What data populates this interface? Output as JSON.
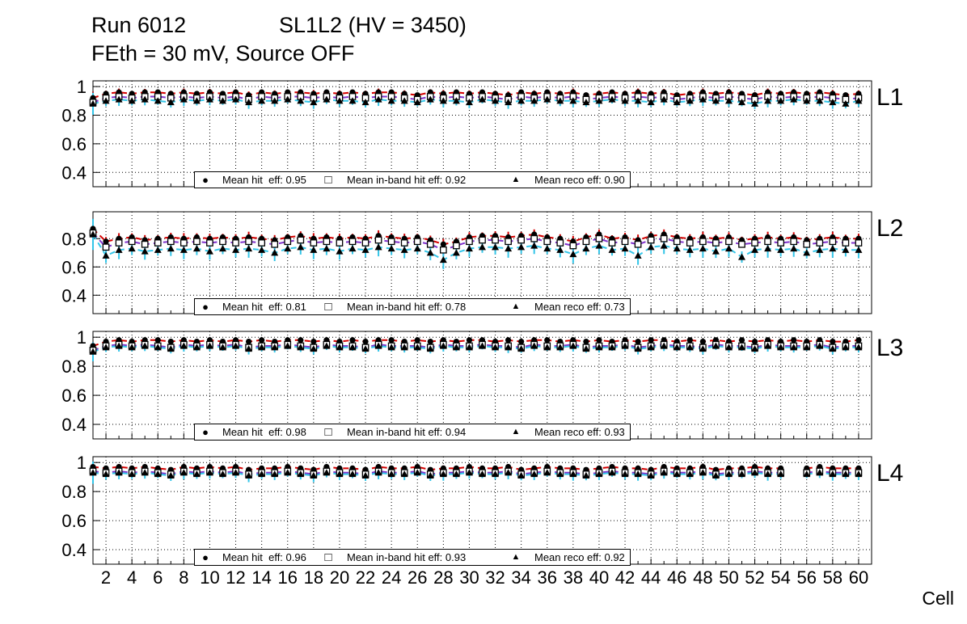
{
  "header": {
    "run_label": "Run 6012",
    "chamber_label": "SL1L2 (HV = 3450)",
    "subtitle": "FEth = 30 mV, Source OFF"
  },
  "xaxis": {
    "label": "Cell",
    "min": 1,
    "max": 61,
    "ticks": [
      2,
      4,
      6,
      8,
      10,
      12,
      14,
      16,
      18,
      20,
      22,
      24,
      26,
      28,
      30,
      32,
      34,
      36,
      38,
      40,
      42,
      44,
      46,
      48,
      50,
      52,
      54,
      56,
      58,
      60
    ]
  },
  "styles": {
    "hit_error_color": "#d40000",
    "inband_error_color": "#8033cc",
    "reco_error_color": "#33c5e8",
    "marker_color": "#000000",
    "background": "#ffffff"
  },
  "chart_data": [
    {
      "type": "scatter",
      "title": "L1",
      "xlabel": "Cell",
      "ylim": [
        0.3,
        1.04
      ],
      "yticks": [
        0.4,
        0.6,
        0.8,
        1
      ],
      "grid": "dotted",
      "legend_position": "bottom-center",
      "series": [
        {
          "name": "Mean hit  eff: 0.95",
          "mean": 0.95,
          "marker": "filled-circle",
          "color": "#d40000",
          "err": 0.02,
          "values": [
            0.92,
            0.95,
            0.96,
            0.95,
            0.96,
            0.96,
            0.95,
            0.96,
            0.95,
            0.96,
            0.95,
            0.96,
            0.94,
            0.96,
            0.95,
            0.96,
            0.96,
            0.95,
            0.96,
            0.95,
            0.96,
            0.95,
            0.96,
            0.96,
            0.95,
            0.94,
            0.96,
            0.95,
            0.96,
            0.95,
            0.96,
            0.95,
            0.94,
            0.96,
            0.95,
            0.96,
            0.95,
            0.96,
            0.94,
            0.95,
            0.96,
            0.95,
            0.96,
            0.95,
            0.96,
            0.94,
            0.95,
            0.96,
            0.95,
            0.96,
            0.95,
            0.94,
            0.96,
            0.95,
            0.96,
            0.95,
            0.96,
            0.95,
            0.94,
            0.95
          ]
        },
        {
          "name": "Mean in-band hit eff: 0.92",
          "mean": 0.92,
          "marker": "open-square",
          "color": "#8033cc",
          "err": 0.018,
          "values": [
            0.89,
            0.92,
            0.93,
            0.92,
            0.93,
            0.93,
            0.92,
            0.93,
            0.92,
            0.93,
            0.92,
            0.93,
            0.91,
            0.93,
            0.92,
            0.93,
            0.93,
            0.92,
            0.93,
            0.92,
            0.93,
            0.92,
            0.93,
            0.93,
            0.92,
            0.91,
            0.93,
            0.92,
            0.93,
            0.92,
            0.93,
            0.92,
            0.91,
            0.93,
            0.92,
            0.93,
            0.92,
            0.93,
            0.91,
            0.92,
            0.93,
            0.92,
            0.93,
            0.92,
            0.93,
            0.91,
            0.92,
            0.93,
            0.92,
            0.93,
            0.92,
            0.91,
            0.93,
            0.92,
            0.93,
            0.92,
            0.93,
            0.92,
            0.91,
            0.92
          ]
        },
        {
          "name": "Mean reco eff: 0.90",
          "mean": 0.9,
          "marker": "filled-triangle",
          "color": "#33c5e8",
          "err": 0.035,
          "values": [
            0.88,
            0.9,
            0.91,
            0.9,
            0.91,
            0.9,
            0.89,
            0.91,
            0.9,
            0.91,
            0.9,
            0.91,
            0.89,
            0.9,
            0.9,
            0.91,
            0.9,
            0.89,
            0.91,
            0.9,
            0.9,
            0.89,
            0.91,
            0.9,
            0.9,
            0.89,
            0.91,
            0.9,
            0.9,
            0.89,
            0.91,
            0.9,
            0.89,
            0.9,
            0.9,
            0.91,
            0.9,
            0.9,
            0.89,
            0.9,
            0.91,
            0.9,
            0.9,
            0.89,
            0.91,
            0.89,
            0.9,
            0.91,
            0.9,
            0.9,
            0.89,
            0.88,
            0.9,
            0.9,
            0.91,
            0.9,
            0.9,
            0.89,
            0.88,
            0.9
          ]
        }
      ]
    },
    {
      "type": "scatter",
      "title": "L2",
      "xlabel": "Cell",
      "ylim": [
        0.27,
        0.99
      ],
      "yticks": [
        0.4,
        0.6,
        0.8
      ],
      "grid": "dotted",
      "legend_position": "bottom-center",
      "series": [
        {
          "name": "Mean hit  eff: 0.81",
          "mean": 0.81,
          "marker": "filled-circle",
          "color": "#d40000",
          "err": 0.03,
          "values": [
            0.87,
            0.78,
            0.8,
            0.81,
            0.79,
            0.8,
            0.81,
            0.8,
            0.81,
            0.8,
            0.81,
            0.8,
            0.81,
            0.8,
            0.79,
            0.81,
            0.82,
            0.8,
            0.81,
            0.8,
            0.81,
            0.8,
            0.82,
            0.81,
            0.8,
            0.81,
            0.79,
            0.76,
            0.78,
            0.81,
            0.82,
            0.82,
            0.81,
            0.82,
            0.83,
            0.81,
            0.8,
            0.78,
            0.81,
            0.83,
            0.8,
            0.81,
            0.79,
            0.82,
            0.83,
            0.81,
            0.8,
            0.81,
            0.8,
            0.81,
            0.79,
            0.8,
            0.81,
            0.8,
            0.81,
            0.79,
            0.8,
            0.81,
            0.8,
            0.8
          ]
        },
        {
          "name": "Mean in-band hit eff: 0.78",
          "mean": 0.78,
          "marker": "open-square",
          "color": "#8033cc",
          "err": 0.028,
          "values": [
            0.84,
            0.74,
            0.77,
            0.78,
            0.76,
            0.77,
            0.78,
            0.77,
            0.78,
            0.77,
            0.78,
            0.77,
            0.78,
            0.77,
            0.76,
            0.78,
            0.79,
            0.77,
            0.78,
            0.77,
            0.78,
            0.77,
            0.79,
            0.78,
            0.77,
            0.78,
            0.76,
            0.72,
            0.75,
            0.78,
            0.79,
            0.79,
            0.78,
            0.79,
            0.8,
            0.78,
            0.77,
            0.75,
            0.78,
            0.8,
            0.77,
            0.78,
            0.76,
            0.79,
            0.8,
            0.78,
            0.77,
            0.78,
            0.77,
            0.78,
            0.76,
            0.77,
            0.78,
            0.77,
            0.78,
            0.76,
            0.77,
            0.78,
            0.77,
            0.77
          ]
        },
        {
          "name": "Mean reco eff: 0.73",
          "mean": 0.73,
          "marker": "filled-triangle",
          "color": "#33c5e8",
          "err": 0.05,
          "values": [
            0.83,
            0.68,
            0.72,
            0.73,
            0.71,
            0.72,
            0.73,
            0.72,
            0.73,
            0.71,
            0.73,
            0.72,
            0.73,
            0.72,
            0.7,
            0.73,
            0.74,
            0.72,
            0.73,
            0.71,
            0.73,
            0.72,
            0.74,
            0.73,
            0.72,
            0.73,
            0.7,
            0.65,
            0.7,
            0.73,
            0.74,
            0.74,
            0.73,
            0.74,
            0.75,
            0.73,
            0.72,
            0.69,
            0.73,
            0.75,
            0.72,
            0.73,
            0.68,
            0.74,
            0.75,
            0.73,
            0.72,
            0.73,
            0.71,
            0.73,
            0.67,
            0.72,
            0.73,
            0.72,
            0.73,
            0.7,
            0.72,
            0.73,
            0.72,
            0.72
          ]
        }
      ]
    },
    {
      "type": "scatter",
      "title": "L3",
      "xlabel": "Cell",
      "ylim": [
        0.3,
        1.04
      ],
      "yticks": [
        0.4,
        0.6,
        0.8,
        1
      ],
      "grid": "dotted",
      "legend_position": "bottom-center",
      "series": [
        {
          "name": "Mean hit  eff: 0.98",
          "mean": 0.98,
          "marker": "filled-circle",
          "color": "#d40000",
          "err": 0.012,
          "values": [
            0.94,
            0.97,
            0.98,
            0.97,
            0.98,
            0.98,
            0.97,
            0.98,
            0.97,
            0.98,
            0.97,
            0.98,
            0.97,
            0.98,
            0.97,
            0.98,
            0.98,
            0.97,
            0.98,
            0.97,
            0.98,
            0.97,
            0.98,
            0.98,
            0.97,
            0.98,
            0.97,
            0.98,
            0.97,
            0.98,
            0.98,
            0.97,
            0.98,
            0.97,
            0.98,
            0.98,
            0.97,
            0.98,
            0.97,
            0.98,
            0.97,
            0.98,
            0.97,
            0.98,
            0.98,
            0.97,
            0.98,
            0.97,
            0.98,
            0.97,
            0.98,
            0.97,
            0.98,
            0.97,
            0.98,
            0.97,
            0.98,
            0.97,
            0.97,
            0.98
          ]
        },
        {
          "name": "Mean in-band hit eff: 0.94",
          "mean": 0.94,
          "marker": "open-square",
          "color": "#8033cc",
          "err": 0.018,
          "values": [
            0.91,
            0.94,
            0.95,
            0.94,
            0.95,
            0.94,
            0.93,
            0.95,
            0.94,
            0.95,
            0.94,
            0.95,
            0.93,
            0.94,
            0.94,
            0.95,
            0.94,
            0.93,
            0.95,
            0.94,
            0.94,
            0.93,
            0.95,
            0.94,
            0.94,
            0.94,
            0.93,
            0.95,
            0.94,
            0.94,
            0.95,
            0.94,
            0.94,
            0.93,
            0.95,
            0.94,
            0.94,
            0.95,
            0.93,
            0.94,
            0.94,
            0.95,
            0.93,
            0.94,
            0.95,
            0.94,
            0.94,
            0.93,
            0.95,
            0.94,
            0.94,
            0.93,
            0.95,
            0.94,
            0.94,
            0.94,
            0.95,
            0.93,
            0.94,
            0.94
          ]
        },
        {
          "name": "Mean reco eff: 0.93",
          "mean": 0.93,
          "marker": "filled-triangle",
          "color": "#33c5e8",
          "err": 0.03,
          "values": [
            0.9,
            0.93,
            0.94,
            0.93,
            0.94,
            0.93,
            0.92,
            0.94,
            0.93,
            0.94,
            0.93,
            0.94,
            0.92,
            0.93,
            0.93,
            0.94,
            0.93,
            0.92,
            0.94,
            0.93,
            0.93,
            0.92,
            0.94,
            0.93,
            0.93,
            0.93,
            0.92,
            0.94,
            0.93,
            0.93,
            0.94,
            0.93,
            0.93,
            0.92,
            0.94,
            0.93,
            0.93,
            0.94,
            0.92,
            0.93,
            0.93,
            0.94,
            0.92,
            0.93,
            0.94,
            0.93,
            0.93,
            0.92,
            0.94,
            0.93,
            0.93,
            0.92,
            0.94,
            0.93,
            0.93,
            0.93,
            0.94,
            0.92,
            0.93,
            0.93
          ]
        }
      ]
    },
    {
      "type": "scatter",
      "title": "L4",
      "xlabel": "Cell",
      "ylim": [
        0.3,
        1.04
      ],
      "yticks": [
        0.4,
        0.6,
        0.8,
        1
      ],
      "grid": "dotted",
      "legend_position": "bottom-center",
      "series": [
        {
          "name": "Mean hit  eff: 0.96",
          "mean": 0.96,
          "marker": "filled-circle",
          "color": "#d40000",
          "err": 0.015,
          "values": [
            0.97,
            0.96,
            0.97,
            0.96,
            0.97,
            0.96,
            0.95,
            0.97,
            0.96,
            0.97,
            0.96,
            0.97,
            0.95,
            0.96,
            0.96,
            0.97,
            0.96,
            0.95,
            0.97,
            0.96,
            0.96,
            0.95,
            0.97,
            0.96,
            0.96,
            0.97,
            0.95,
            0.96,
            0.96,
            0.97,
            0.96,
            0.96,
            0.97,
            0.95,
            0.96,
            0.97,
            0.96,
            0.96,
            0.95,
            0.96,
            0.97,
            0.96,
            0.96,
            0.95,
            0.97,
            0.96,
            0.96,
            0.97,
            0.95,
            0.96,
            0.96,
            0.97,
            0.96,
            0.96,
            null,
            0.96,
            0.97,
            0.96,
            0.96,
            0.96
          ]
        },
        {
          "name": "Mean in-band hit eff: 0.93",
          "mean": 0.93,
          "marker": "open-square",
          "color": "#8033cc",
          "err": 0.018,
          "values": [
            0.94,
            0.93,
            0.94,
            0.93,
            0.94,
            0.93,
            0.92,
            0.94,
            0.93,
            0.94,
            0.93,
            0.94,
            0.92,
            0.93,
            0.93,
            0.94,
            0.93,
            0.92,
            0.94,
            0.93,
            0.93,
            0.92,
            0.94,
            0.93,
            0.93,
            0.94,
            0.92,
            0.93,
            0.93,
            0.94,
            0.93,
            0.93,
            0.94,
            0.92,
            0.93,
            0.94,
            0.93,
            0.93,
            0.92,
            0.93,
            0.94,
            0.93,
            0.93,
            0.92,
            0.94,
            0.93,
            0.93,
            0.94,
            0.92,
            0.93,
            0.93,
            0.94,
            0.93,
            0.93,
            null,
            0.93,
            0.94,
            0.93,
            0.93,
            0.93
          ]
        },
        {
          "name": "Mean reco eff: 0.92",
          "mean": 0.92,
          "marker": "filled-triangle",
          "color": "#33c5e8",
          "err": 0.035,
          "values": [
            0.93,
            0.92,
            0.93,
            0.92,
            0.93,
            0.92,
            0.91,
            0.93,
            0.92,
            0.93,
            0.92,
            0.93,
            0.91,
            0.92,
            0.92,
            0.93,
            0.92,
            0.91,
            0.93,
            0.92,
            0.92,
            0.91,
            0.93,
            0.92,
            0.92,
            0.93,
            0.91,
            0.92,
            0.92,
            0.93,
            0.92,
            0.92,
            0.93,
            0.91,
            0.92,
            0.93,
            0.92,
            0.92,
            0.91,
            0.92,
            0.93,
            0.92,
            0.92,
            0.91,
            0.93,
            0.92,
            0.92,
            0.93,
            0.91,
            0.92,
            0.92,
            0.93,
            0.92,
            0.92,
            null,
            0.92,
            0.93,
            0.92,
            0.92,
            0.92
          ]
        }
      ]
    }
  ]
}
